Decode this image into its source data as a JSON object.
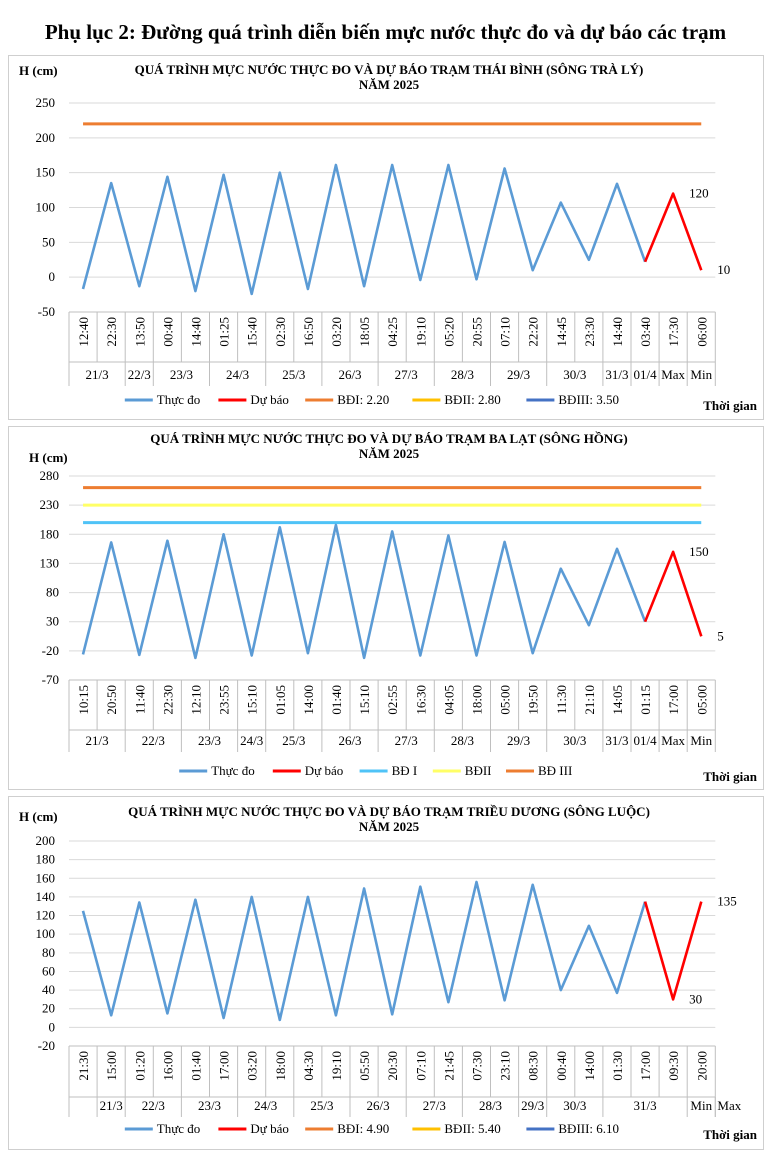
{
  "page_title": "Phụ lục 2: Đường quá trình diễn biến mực nước thực đo và dự báo các trạm",
  "colors": {
    "observed": "#5b9bd5",
    "forecast": "#ff0000",
    "grid": "#d9d9d9"
  },
  "chart_data": [
    {
      "type": "line",
      "title": "QUÁ TRÌNH MỰC NƯỚC THỰC ĐO VÀ DỰ BÁO TRẠM THÁI BÌNH (SÔNG TRÀ LÝ)",
      "subtitle": "NĂM 2025",
      "ylabel": "H (cm)",
      "xlabel": "Thời gian",
      "ylim": [
        -50,
        250
      ],
      "yticks": [
        -50,
        0,
        50,
        100,
        150,
        200,
        250
      ],
      "times": [
        "12:40",
        "22:30",
        "13:50",
        "00:40",
        "14:40",
        "01:25",
        "15:40",
        "02:30",
        "16:50",
        "03:20",
        "18:05",
        "04:25",
        "19:10",
        "05:20",
        "20:55",
        "07:10",
        "22:20",
        "14:45",
        "23:30",
        "14:40",
        "03:40",
        "17:30",
        "06:00"
      ],
      "date_groups": [
        {
          "label": "21/3",
          "count": 2
        },
        {
          "label": "22/3",
          "count": 1
        },
        {
          "label": "23/3",
          "count": 2
        },
        {
          "label": "24/3",
          "count": 2
        },
        {
          "label": "25/3",
          "count": 2
        },
        {
          "label": "26/3",
          "count": 2
        },
        {
          "label": "27/3",
          "count": 2
        },
        {
          "label": "28/3",
          "count": 2
        },
        {
          "label": "29/3",
          "count": 2
        },
        {
          "label": "30/3",
          "count": 2
        },
        {
          "label": "31/3",
          "count": 1
        },
        {
          "label": "01/4",
          "count": 1
        },
        {
          "label": "Max",
          "count": 1
        },
        {
          "label": "Min",
          "count": 1
        }
      ],
      "series": [
        {
          "name": "Thực đo",
          "values": [
            -17,
            135,
            -13,
            144,
            -20,
            147,
            -24,
            150,
            -17,
            161,
            -13,
            161,
            -4,
            161,
            -3,
            156,
            10,
            107,
            25,
            134,
            22,
            null,
            null
          ]
        },
        {
          "name": "Dự báo",
          "values": [
            null,
            null,
            null,
            null,
            null,
            null,
            null,
            null,
            null,
            null,
            null,
            null,
            null,
            null,
            null,
            null,
            null,
            null,
            null,
            null,
            22,
            120,
            10
          ]
        }
      ],
      "thresholds": [
        {
          "name": "BĐI: 2.20",
          "value": 220,
          "color": "#ed7d31",
          "visible": true
        },
        {
          "name": "BĐII: 2.80",
          "value": 280,
          "color": "#ffc000",
          "visible": false
        },
        {
          "name": "BĐIII: 3.50",
          "value": 350,
          "color": "#4472c4",
          "visible": false
        }
      ],
      "annotations": [
        {
          "text": "120",
          "index": 21
        },
        {
          "text": "10",
          "index": 22
        }
      ]
    },
    {
      "type": "line",
      "title": "QUÁ TRÌNH MỰC NƯỚC THỰC ĐO VÀ DỰ BÁO TRẠM BA LẠT (SÔNG HỒNG)",
      "subtitle": "NĂM 2025",
      "ylabel": "H (cm)",
      "xlabel": "Thời gian",
      "ylim": [
        -70,
        280
      ],
      "yticks": [
        -70,
        -20,
        30,
        80,
        130,
        180,
        230,
        280
      ],
      "times": [
        "10:15",
        "20:50",
        "11:40",
        "22:30",
        "12:10",
        "23:55",
        "15:10",
        "01:05",
        "14:00",
        "01:40",
        "15:10",
        "02:55",
        "16:30",
        "04:05",
        "18:00",
        "05:00",
        "19:50",
        "11:30",
        "21:10",
        "14:05",
        "01:15",
        "17:00",
        "05:00"
      ],
      "date_groups": [
        {
          "label": "21/3",
          "count": 2
        },
        {
          "label": "22/3",
          "count": 2
        },
        {
          "label": "23/3",
          "count": 2
        },
        {
          "label": "24/3",
          "count": 1
        },
        {
          "label": "25/3",
          "count": 2
        },
        {
          "label": "26/3",
          "count": 2
        },
        {
          "label": "27/3",
          "count": 2
        },
        {
          "label": "28/3",
          "count": 2
        },
        {
          "label": "29/3",
          "count": 2
        },
        {
          "label": "30/3",
          "count": 2
        },
        {
          "label": "31/3",
          "count": 1
        },
        {
          "label": "01/4",
          "count": 1
        },
        {
          "label": "Max",
          "count": 1
        },
        {
          "label": "Min",
          "count": 1
        }
      ],
      "series": [
        {
          "name": "Thực đo",
          "values": [
            -26,
            166,
            -27,
            169,
            -32,
            180,
            -28,
            192,
            -24,
            196,
            -32,
            185,
            -28,
            178,
            -28,
            167,
            -24,
            121,
            24,
            155,
            30,
            null,
            null
          ]
        },
        {
          "name": "Dự báo",
          "values": [
            null,
            null,
            null,
            null,
            null,
            null,
            null,
            null,
            null,
            null,
            null,
            null,
            null,
            null,
            null,
            null,
            null,
            null,
            null,
            null,
            30,
            150,
            5
          ]
        }
      ],
      "thresholds": [
        {
          "name": "BĐ I",
          "value": 200,
          "color": "#4fc3f7",
          "visible": true
        },
        {
          "name": "BĐII",
          "value": 230,
          "color": "#ffff66",
          "visible": true
        },
        {
          "name": "BĐ III",
          "value": 260,
          "color": "#ed7d31",
          "visible": true
        }
      ],
      "annotations": [
        {
          "text": "150",
          "index": 21
        },
        {
          "text": "5",
          "index": 22
        }
      ]
    },
    {
      "type": "line",
      "title": "QUÁ TRÌNH MỰC NƯỚC THỰC ĐO VÀ DỰ BÁO TRẠM TRIỀU DƯƠNG  (SÔNG LUỘC)",
      "subtitle": "NĂM 2025",
      "ylabel": "H (cm)",
      "xlabel": "Thời gian",
      "ylim": [
        -20,
        200
      ],
      "yticks": [
        -20,
        0,
        20,
        40,
        60,
        80,
        100,
        120,
        140,
        160,
        180,
        200
      ],
      "times": [
        "21:30",
        "15:00",
        "01:20",
        "16:00",
        "01:40",
        "17:00",
        "03:20",
        "18:00",
        "04:30",
        "19:10",
        "05:50",
        "20:30",
        "07:10",
        "21:45",
        "07:30",
        "23:10",
        "08:30",
        "00:40",
        "14:00",
        "01:30",
        "17:00",
        "09:30",
        "20:00"
      ],
      "date_groups": [
        {
          "label": "",
          "count": 1
        },
        {
          "label": "21/3",
          "count": 1
        },
        {
          "label": "22/3",
          "count": 2
        },
        {
          "label": "23/3",
          "count": 2
        },
        {
          "label": "24/3",
          "count": 2
        },
        {
          "label": "25/3",
          "count": 2
        },
        {
          "label": "26/3",
          "count": 2
        },
        {
          "label": "27/3",
          "count": 2
        },
        {
          "label": "28/3",
          "count": 2
        },
        {
          "label": "29/3",
          "count": 1
        },
        {
          "label": "30/3",
          "count": 2
        },
        {
          "label": "31/3",
          "count": 3
        },
        {
          "label": "Min",
          "count": 1
        },
        {
          "label": "Max",
          "count": 1
        }
      ],
      "series": [
        {
          "name": "Thực đo",
          "values": [
            125,
            13,
            134,
            15,
            137,
            10,
            140,
            8,
            140,
            13,
            149,
            14,
            151,
            27,
            156,
            29,
            153,
            40,
            109,
            37,
            135,
            null,
            null
          ]
        },
        {
          "name": "Dự báo",
          "values": [
            null,
            null,
            null,
            null,
            null,
            null,
            null,
            null,
            null,
            null,
            null,
            null,
            null,
            null,
            null,
            null,
            null,
            null,
            null,
            null,
            135,
            30,
            135
          ]
        }
      ],
      "thresholds": [
        {
          "name": "BĐI: 4.90",
          "value": 490,
          "color": "#ed7d31",
          "visible": false
        },
        {
          "name": "BĐII: 5.40",
          "value": 540,
          "color": "#ffc000",
          "visible": false
        },
        {
          "name": "BĐIII: 6.10",
          "value": 610,
          "color": "#4472c4",
          "visible": false
        }
      ],
      "annotations": [
        {
          "text": "30",
          "index": 21
        },
        {
          "text": "135",
          "index": 22
        }
      ]
    }
  ]
}
